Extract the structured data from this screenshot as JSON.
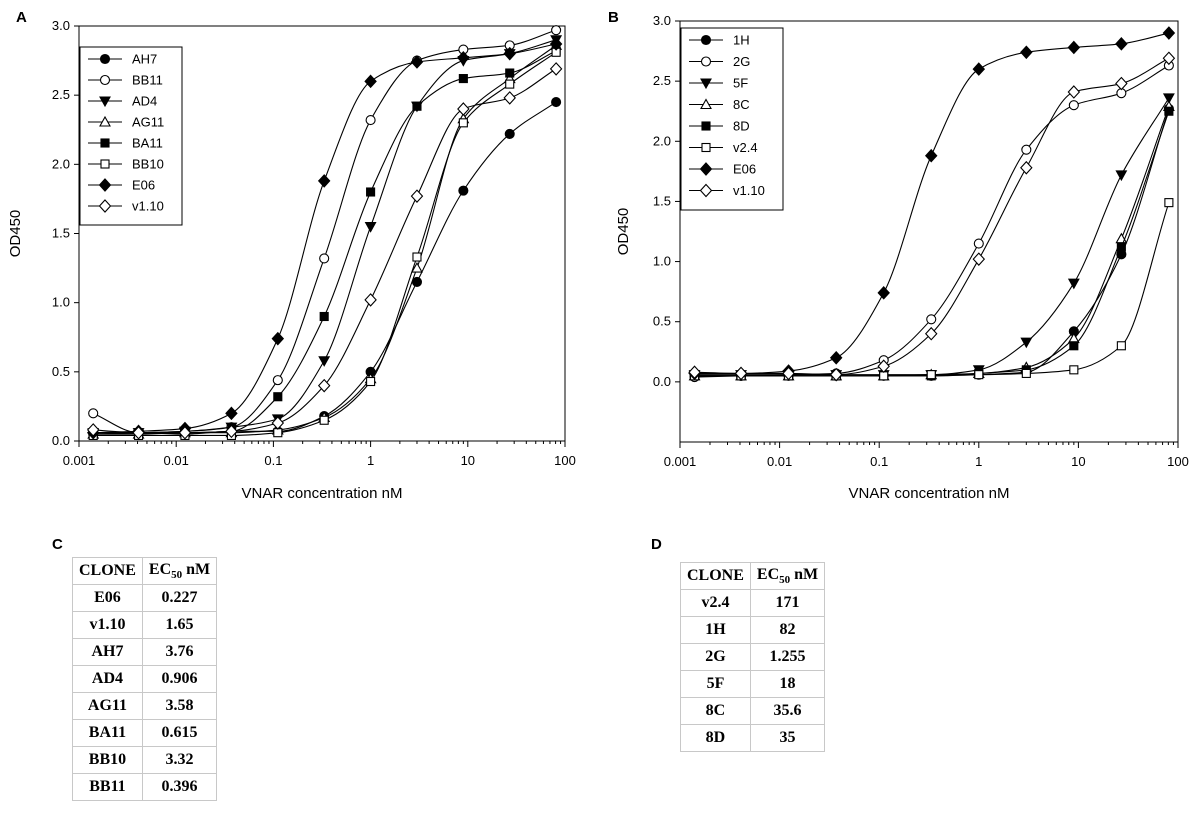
{
  "panels": {
    "a": {
      "letter": "A",
      "legend": [
        "AH7",
        "BB11",
        "AD4",
        "AG11",
        "BA11",
        "BB10",
        "E06",
        "v1.10"
      ]
    },
    "b": {
      "letter": "B",
      "legend": [
        "1H",
        "2G",
        "5F",
        "8C",
        "8D",
        "v2.4",
        "E06",
        "v1.10"
      ]
    },
    "c": {
      "letter": "C",
      "header": {
        "clone": "CLONE",
        "ec_prefix": "EC",
        "ec_sub": "50",
        "ec_unit": "nM"
      },
      "rows": [
        {
          "clone": "E06",
          "value": "0.227"
        },
        {
          "clone": "v1.10",
          "value": "1.65"
        },
        {
          "clone": "AH7",
          "value": "3.76"
        },
        {
          "clone": "AD4",
          "value": "0.906"
        },
        {
          "clone": "AG11",
          "value": "3.58"
        },
        {
          "clone": "BA11",
          "value": "0.615"
        },
        {
          "clone": "BB10",
          "value": "3.32"
        },
        {
          "clone": "BB11",
          "value": "0.396"
        }
      ]
    },
    "d": {
      "letter": "D",
      "header": {
        "clone": "CLONE",
        "ec_prefix": "EC",
        "ec_sub": "50",
        "ec_unit": "nM"
      },
      "rows": [
        {
          "clone": "v2.4",
          "value": "171"
        },
        {
          "clone": "1H",
          "value": "82"
        },
        {
          "clone": "2G",
          "value": "1.255"
        },
        {
          "clone": "5F",
          "value": "18"
        },
        {
          "clone": "8C",
          "value": "35.6"
        },
        {
          "clone": "8D",
          "value": "35"
        }
      ]
    }
  },
  "chart_data": [
    {
      "type": "line",
      "panel": "A",
      "xlabel": "VNAR concentration nM",
      "ylabel": "OD450",
      "xscale": "log",
      "xlim": [
        0.001,
        100
      ],
      "ylim": [
        0,
        3.0
      ],
      "xticks": [
        "0.001",
        "0.01",
        "0.1",
        "1",
        "10",
        "100"
      ],
      "yticks": [
        "0.0",
        "0.5",
        "1.0",
        "1.5",
        "2.0",
        "2.5",
        "3.0"
      ],
      "legend_position": "top-left",
      "x": [
        0.0014,
        0.0041,
        0.0123,
        0.037,
        0.111,
        0.333,
        1,
        3,
        9,
        27,
        81
      ],
      "series": [
        {
          "name": "AH7",
          "marker": "circle-filled",
          "values": [
            0.05,
            0.06,
            0.05,
            0.07,
            0.07,
            0.18,
            0.5,
            1.15,
            1.81,
            2.22,
            2.45
          ]
        },
        {
          "name": "BB11",
          "marker": "circle-open",
          "values": [
            0.2,
            0.06,
            0.07,
            0.1,
            0.44,
            1.32,
            2.32,
            2.75,
            2.83,
            2.86,
            2.97
          ]
        },
        {
          "name": "AD4",
          "marker": "triangle-down-filled",
          "values": [
            0.06,
            0.06,
            0.07,
            0.1,
            0.16,
            0.58,
            1.55,
            2.42,
            2.75,
            2.8,
            2.9
          ]
        },
        {
          "name": "AG11",
          "marker": "triangle-up-open",
          "values": [
            0.05,
            0.05,
            0.06,
            0.06,
            0.08,
            0.17,
            0.45,
            1.25,
            2.33,
            2.62,
            2.86
          ]
        },
        {
          "name": "BA11",
          "marker": "square-filled",
          "values": [
            0.06,
            0.06,
            0.06,
            0.07,
            0.32,
            0.9,
            1.8,
            2.42,
            2.62,
            2.66,
            2.82
          ]
        },
        {
          "name": "BB10",
          "marker": "square-open",
          "values": [
            0.04,
            0.04,
            0.04,
            0.04,
            0.06,
            0.15,
            0.43,
            1.33,
            2.3,
            2.58,
            2.81
          ]
        },
        {
          "name": "E06",
          "marker": "diamond-filled",
          "values": [
            0.06,
            0.07,
            0.09,
            0.2,
            0.74,
            1.88,
            2.6,
            2.74,
            2.77,
            2.8,
            2.87
          ]
        },
        {
          "name": "v1.10",
          "marker": "diamond-open",
          "values": [
            0.08,
            0.06,
            0.06,
            0.07,
            0.13,
            0.4,
            1.02,
            1.77,
            2.4,
            2.48,
            2.69
          ]
        }
      ]
    },
    {
      "type": "line",
      "panel": "B",
      "xlabel": "VNAR concentration nM",
      "ylabel": "OD450",
      "xscale": "log",
      "xlim": [
        0.001,
        100
      ],
      "ylim": [
        -0.5,
        3.0
      ],
      "xticks": [
        "0.001",
        "0.01",
        "0.1",
        "1",
        "10",
        "100"
      ],
      "yticks": [
        "0.0",
        "0.5",
        "1.0",
        "1.5",
        "2.0",
        "2.5",
        "3.0"
      ],
      "legend_position": "top-left",
      "x": [
        0.0014,
        0.0041,
        0.0123,
        0.037,
        0.111,
        0.333,
        1,
        3,
        9,
        27,
        81
      ],
      "series": [
        {
          "name": "1H",
          "marker": "circle-filled",
          "values": [
            0.05,
            0.05,
            0.05,
            0.05,
            0.05,
            0.05,
            0.06,
            0.08,
            0.42,
            1.06,
            2.27
          ]
        },
        {
          "name": "2G",
          "marker": "circle-open",
          "values": [
            0.04,
            0.05,
            0.06,
            0.07,
            0.18,
            0.52,
            1.15,
            1.93,
            2.3,
            2.4,
            2.63
          ]
        },
        {
          "name": "5F",
          "marker": "triangle-down-filled",
          "values": [
            0.06,
            0.06,
            0.06,
            0.06,
            0.06,
            0.06,
            0.1,
            0.33,
            0.82,
            1.72,
            2.36
          ]
        },
        {
          "name": "8C",
          "marker": "triangle-up-open",
          "values": [
            0.05,
            0.05,
            0.05,
            0.05,
            0.05,
            0.06,
            0.07,
            0.12,
            0.36,
            1.19,
            2.29
          ]
        },
        {
          "name": "8D",
          "marker": "square-filled",
          "values": [
            0.05,
            0.05,
            0.05,
            0.05,
            0.05,
            0.05,
            0.07,
            0.1,
            0.3,
            1.12,
            2.25
          ]
        },
        {
          "name": "v2.4",
          "marker": "square-open",
          "values": [
            0.05,
            0.05,
            0.05,
            0.05,
            0.05,
            0.06,
            0.06,
            0.07,
            0.1,
            0.3,
            1.49
          ]
        },
        {
          "name": "E06",
          "marker": "diamond-filled",
          "values": [
            0.07,
            0.07,
            0.09,
            0.2,
            0.74,
            1.88,
            2.6,
            2.74,
            2.78,
            2.81,
            2.9
          ]
        },
        {
          "name": "v1.10",
          "marker": "diamond-open",
          "values": [
            0.08,
            0.07,
            0.07,
            0.06,
            0.13,
            0.4,
            1.02,
            1.78,
            2.41,
            2.48,
            2.69
          ]
        }
      ]
    }
  ]
}
